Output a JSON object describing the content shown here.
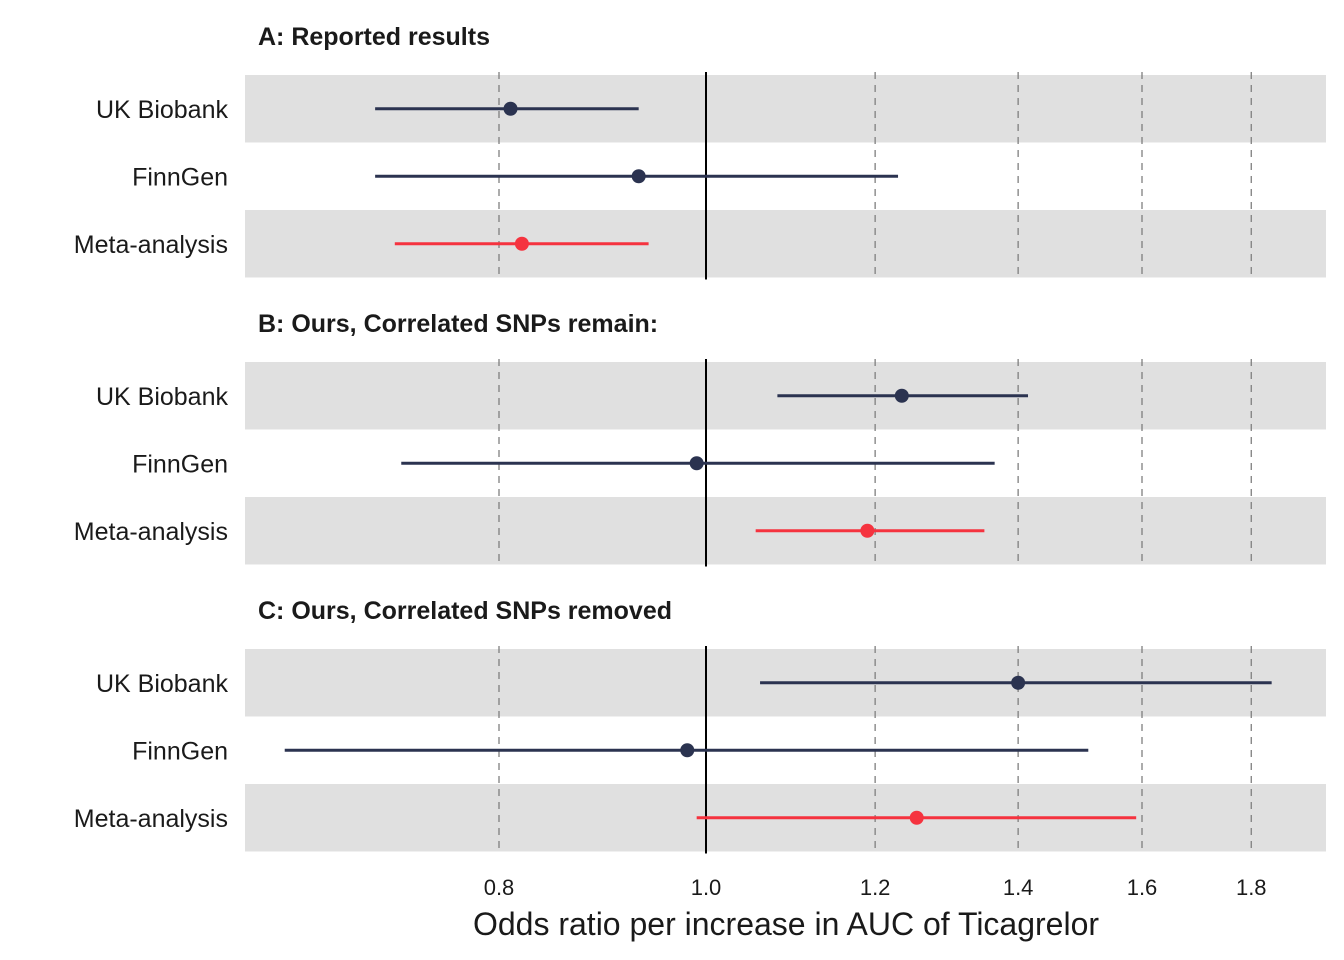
{
  "chart_data": {
    "type": "forest",
    "xlabel": "Odds ratio per increase in AUC of Ticagrelor",
    "x_scale": "log",
    "xlim": [
      0.63,
      1.9
    ],
    "x_ticks": [
      0.8,
      1.0,
      1.2,
      1.4,
      1.6,
      1.8
    ],
    "x_tick_labels": [
      "0.8",
      "1.0",
      "1.2",
      "1.4",
      "1.6",
      "1.8"
    ],
    "reference_line": 1.0,
    "colors": {
      "study": "#2b3350",
      "meta": "#f5333f",
      "band": "#e0e0e0",
      "grid": "#7f7f7f",
      "ref": "#000000"
    },
    "panels": [
      {
        "title": "A: Reported results",
        "rows": [
          {
            "label": "UK Biobank",
            "or": 0.81,
            "lower": 0.7,
            "upper": 0.93,
            "kind": "study"
          },
          {
            "label": "FinnGen",
            "or": 0.93,
            "lower": 0.7,
            "upper": 1.23,
            "kind": "study"
          },
          {
            "label": "Meta-analysis",
            "or": 0.82,
            "lower": 0.715,
            "upper": 0.94,
            "kind": "meta"
          }
        ]
      },
      {
        "title": "B: Ours, Correlated SNPs remain:",
        "rows": [
          {
            "label": "UK Biobank",
            "or": 1.235,
            "lower": 1.08,
            "upper": 1.415,
            "kind": "study"
          },
          {
            "label": "FinnGen",
            "or": 0.99,
            "lower": 0.72,
            "upper": 1.365,
            "kind": "study"
          },
          {
            "label": "Meta-analysis",
            "or": 1.19,
            "lower": 1.055,
            "upper": 1.35,
            "kind": "meta"
          }
        ]
      },
      {
        "title": "C: Ours, Correlated SNPs removed",
        "rows": [
          {
            "label": "UK Biobank",
            "or": 1.4,
            "lower": 1.06,
            "upper": 1.84,
            "kind": "study"
          },
          {
            "label": "FinnGen",
            "or": 0.98,
            "lower": 0.635,
            "upper": 1.51,
            "kind": "study"
          },
          {
            "label": "Meta-analysis",
            "or": 1.255,
            "lower": 0.99,
            "upper": 1.59,
            "kind": "meta"
          }
        ]
      }
    ]
  }
}
